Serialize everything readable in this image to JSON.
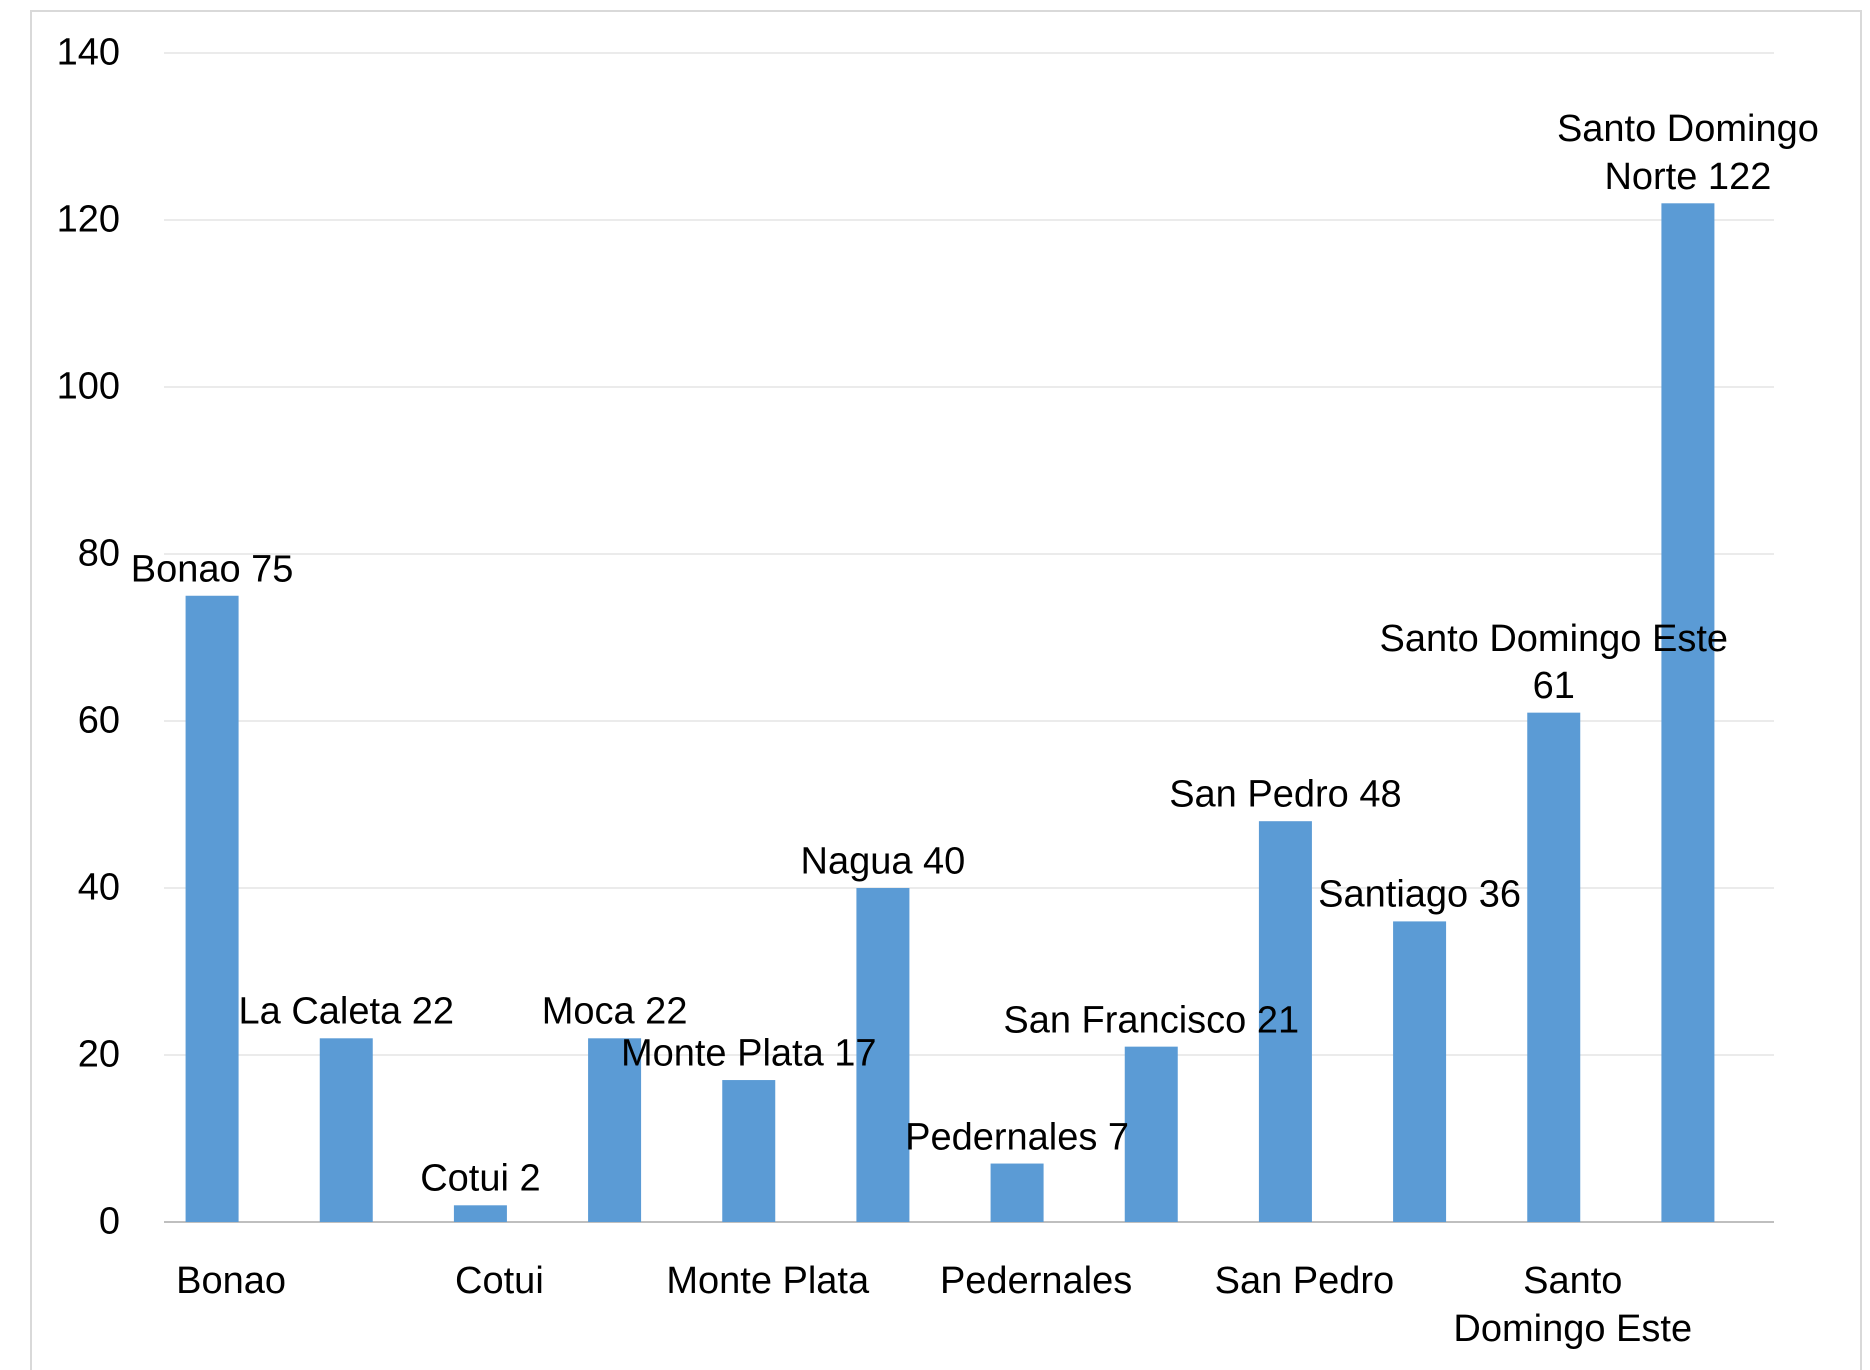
{
  "chart_data": {
    "type": "bar",
    "categories": [
      "Bonao",
      null,
      "Cotui",
      null,
      "Monte Plata",
      null,
      "Pedernales",
      null,
      "San Pedro",
      null,
      "Santo Domingo Este",
      null
    ],
    "values": [
      75,
      22,
      2,
      22,
      17,
      40,
      7,
      21,
      48,
      36,
      61,
      122
    ],
    "value_labels": [
      "Bonao 75",
      "La Caleta 22",
      "Cotui 2",
      "Moca 22",
      "Monte Plata 17",
      "Nagua 40",
      "Pedernales 7",
      "San Francisco 21",
      "San Pedro 48",
      "Santiago 36",
      "Santo Domingo Este 61",
      "Santo Domingo Norte 122"
    ],
    "color": "#5b9bd5",
    "ylim": [
      0,
      140
    ],
    "yticks": [
      0,
      20,
      40,
      60,
      80,
      100,
      120,
      140
    ],
    "grid": true
  }
}
